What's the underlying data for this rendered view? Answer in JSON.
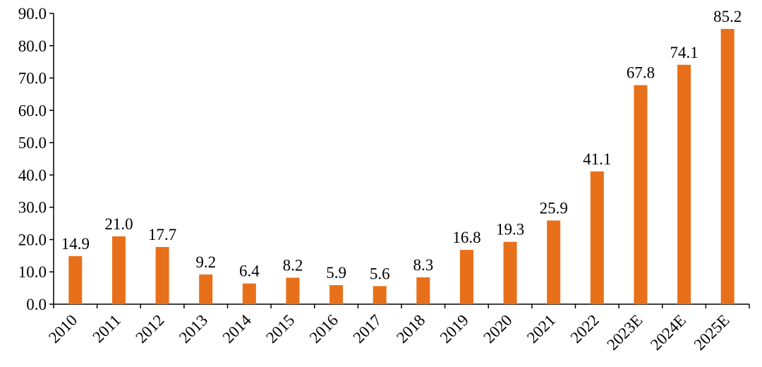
{
  "chart_data": {
    "type": "bar",
    "categories": [
      "2010",
      "2011",
      "2012",
      "2013",
      "2014",
      "2015",
      "2016",
      "2017",
      "2018",
      "2019",
      "2020",
      "2021",
      "2022",
      "2023E",
      "2024E",
      "2025E"
    ],
    "values": [
      14.9,
      21.0,
      17.7,
      9.2,
      6.4,
      8.2,
      5.9,
      5.6,
      8.3,
      16.8,
      19.3,
      25.9,
      41.1,
      67.8,
      74.1,
      85.2
    ],
    "value_labels": [
      "14.9",
      "21.0",
      "17.7",
      "9.2",
      "6.4",
      "8.2",
      "5.9",
      "5.6",
      "8.3",
      "16.8",
      "19.3",
      "25.9",
      "41.1",
      "67.8",
      "74.1",
      "85.2"
    ],
    "title": "",
    "xlabel": "",
    "ylabel": "",
    "ylim": [
      0,
      90
    ],
    "yticks": [
      0,
      10,
      20,
      30,
      40,
      50,
      60,
      70,
      80,
      90
    ],
    "ytick_labels": [
      "0.0",
      "10.0",
      "20.0",
      "30.0",
      "40.0",
      "50.0",
      "60.0",
      "70.0",
      "80.0",
      "90.0"
    ],
    "grid": false,
    "legend": "none",
    "bar_color": "#E8701A"
  }
}
